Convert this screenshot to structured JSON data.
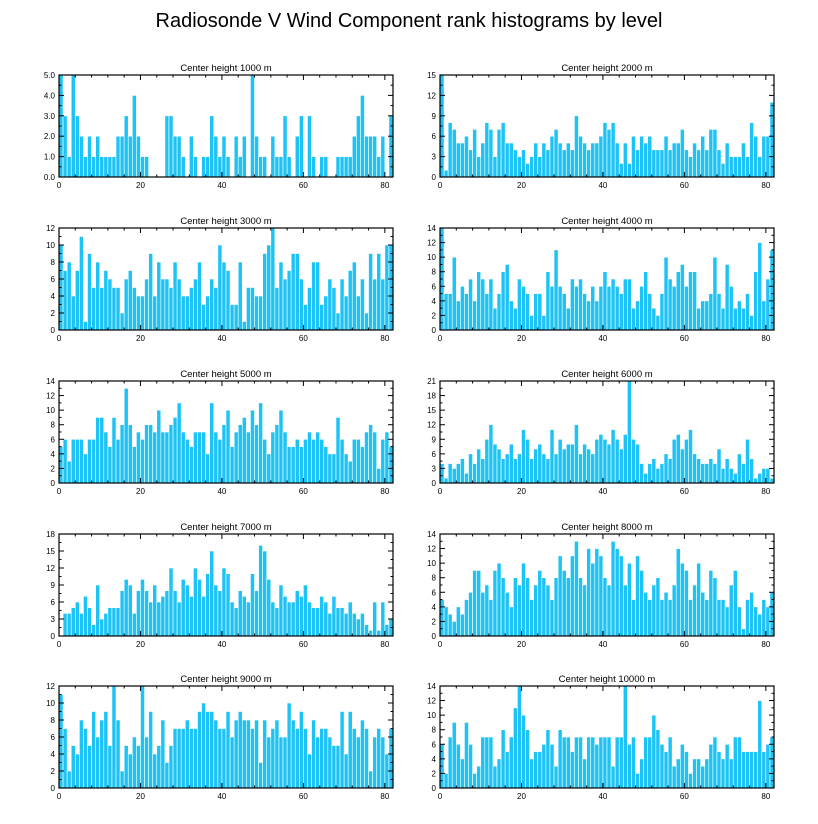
{
  "figure": {
    "title": "Radiosonde V Wind Component rank histograms by level",
    "bar_color": "#1ec3f5"
  },
  "chart_data": [
    {
      "type": "bar",
      "title": "Center height 1000 m",
      "xlim": [
        0,
        82
      ],
      "ylim": [
        0,
        5
      ],
      "xticks": [
        0,
        20,
        40,
        60,
        80
      ],
      "xtick_labels": [
        "0",
        "20",
        "40",
        "60",
        "80"
      ],
      "yticks": [
        0,
        1,
        2,
        3,
        4,
        5
      ],
      "ytick_labels": [
        "0.0",
        "1.0",
        "2.0",
        "3.0",
        "4.0",
        "5.0"
      ],
      "values": [
        5,
        3,
        1,
        5,
        3,
        2,
        1,
        2,
        1,
        2,
        1,
        1,
        1,
        1,
        2,
        2,
        3,
        2,
        4,
        2,
        1,
        1,
        0,
        0,
        0,
        0,
        3,
        3,
        2,
        2,
        1,
        0,
        2,
        1,
        0,
        1,
        1,
        3,
        2,
        1,
        2,
        1,
        0,
        2,
        1,
        2,
        0,
        5,
        2,
        1,
        1,
        0,
        2,
        1,
        1,
        3,
        1,
        0,
        2,
        3,
        0,
        3,
        1,
        0,
        1,
        1,
        0,
        0,
        1,
        1,
        1,
        1,
        2,
        3,
        4,
        2,
        2,
        2,
        1,
        2,
        0,
        3
      ]
    },
    {
      "type": "bar",
      "title": "Center height 2000 m",
      "xlim": [
        0,
        82
      ],
      "ylim": [
        0,
        15
      ],
      "xticks": [
        0,
        20,
        40,
        60,
        80
      ],
      "xtick_labels": [
        "0",
        "20",
        "40",
        "60",
        "80"
      ],
      "yticks": [
        0,
        3,
        6,
        9,
        12,
        15
      ],
      "ytick_labels": [
        "0",
        "3",
        "6",
        "9",
        "12",
        "15"
      ],
      "values": [
        15,
        1,
        8,
        7,
        5,
        5,
        6,
        4,
        7,
        3,
        5,
        8,
        7,
        3,
        7,
        8,
        5,
        5,
        4,
        3,
        4,
        2,
        3,
        5,
        3,
        5,
        4,
        6,
        7,
        5,
        4,
        5,
        4,
        9,
        6,
        5,
        4,
        5,
        5,
        6,
        8,
        7,
        8,
        5,
        2,
        5,
        2,
        6,
        4,
        6,
        5,
        6,
        4,
        4,
        4,
        6,
        4,
        5,
        5,
        7,
        4,
        3,
        5,
        4,
        6,
        4,
        7,
        7,
        4,
        2,
        5,
        3,
        3,
        3,
        5,
        3,
        8,
        6,
        3,
        6,
        6,
        11
      ]
    },
    {
      "type": "bar",
      "title": "Center height 3000 m",
      "xlim": [
        0,
        82
      ],
      "ylim": [
        0,
        12
      ],
      "xticks": [
        0,
        20,
        40,
        60,
        80
      ],
      "xtick_labels": [
        "0",
        "20",
        "40",
        "60",
        "80"
      ],
      "yticks": [
        0,
        2,
        4,
        6,
        8,
        10,
        12
      ],
      "ytick_labels": [
        "0",
        "2",
        "4",
        "6",
        "8",
        "10",
        "12"
      ],
      "values": [
        10,
        7,
        8,
        4,
        7,
        11,
        1,
        9,
        5,
        8,
        5,
        7,
        6,
        5,
        5,
        2,
        6,
        7,
        5,
        4,
        4,
        6,
        9,
        4,
        8,
        6,
        6,
        5,
        8,
        6,
        4,
        4,
        5,
        6,
        8,
        3,
        4,
        6,
        5,
        10,
        8,
        7,
        3,
        3,
        8,
        1,
        5,
        5,
        4,
        4,
        9,
        10,
        12,
        5,
        8,
        6,
        7,
        9,
        9,
        6,
        3,
        5,
        8,
        8,
        3,
        4,
        6,
        5,
        2,
        6,
        4,
        7,
        8,
        4,
        6,
        2,
        9,
        6,
        9,
        6,
        10,
        10
      ]
    },
    {
      "type": "bar",
      "title": "Center height 4000 m",
      "xlim": [
        0,
        82
      ],
      "ylim": [
        0,
        14
      ],
      "xticks": [
        0,
        20,
        40,
        60,
        80
      ],
      "xtick_labels": [
        "0",
        "20",
        "40",
        "60",
        "80"
      ],
      "yticks": [
        0,
        2,
        4,
        6,
        8,
        10,
        12,
        14
      ],
      "ytick_labels": [
        "0",
        "2",
        "4",
        "6",
        "8",
        "10",
        "12",
        "14"
      ],
      "values": [
        14,
        5,
        5,
        10,
        4,
        6,
        5,
        7,
        4,
        8,
        7,
        5,
        7,
        3,
        5,
        8,
        9,
        4,
        3,
        7,
        6,
        5,
        2,
        5,
        5,
        2,
        8,
        6,
        11,
        6,
        5,
        3,
        7,
        6,
        7,
        5,
        4,
        6,
        4,
        6,
        8,
        6,
        7,
        6,
        5,
        7,
        7,
        3,
        4,
        6,
        8,
        5,
        3,
        2,
        5,
        10,
        7,
        6,
        8,
        9,
        6,
        8,
        8,
        3,
        4,
        4,
        5,
        10,
        5,
        3,
        9,
        6,
        3,
        4,
        3,
        5,
        2,
        8,
        12,
        4,
        7,
        11
      ]
    },
    {
      "type": "bar",
      "title": "Center height 5000 m",
      "xlim": [
        0,
        82
      ],
      "ylim": [
        0,
        14
      ],
      "xticks": [
        0,
        20,
        40,
        60,
        80
      ],
      "xtick_labels": [
        "0",
        "20",
        "40",
        "60",
        "80"
      ],
      "yticks": [
        0,
        2,
        4,
        6,
        8,
        10,
        12,
        14
      ],
      "ytick_labels": [
        "0",
        "2",
        "4",
        "6",
        "8",
        "10",
        "12",
        "14"
      ],
      "values": [
        5,
        6,
        3,
        6,
        6,
        6,
        4,
        6,
        6,
        9,
        9,
        7,
        5,
        9,
        6,
        8,
        13,
        8,
        5,
        7,
        6,
        8,
        8,
        7,
        10,
        7,
        7,
        8,
        9,
        11,
        7,
        6,
        5,
        7,
        7,
        7,
        4,
        11,
        7,
        6,
        8,
        10,
        5,
        7,
        8,
        9,
        7,
        10,
        8,
        11,
        6,
        4,
        7,
        8,
        10,
        7,
        5,
        5,
        6,
        5,
        6,
        7,
        6,
        7,
        6,
        5,
        4,
        4,
        9,
        6,
        4,
        3,
        6,
        6,
        5,
        7,
        8,
        7,
        2,
        6,
        7,
        5
      ]
    },
    {
      "type": "bar",
      "title": "Center height 6000 m",
      "xlim": [
        0,
        82
      ],
      "ylim": [
        0,
        21
      ],
      "xticks": [
        0,
        20,
        40,
        60,
        80
      ],
      "xtick_labels": [
        "0",
        "20",
        "40",
        "60",
        "80"
      ],
      "yticks": [
        0,
        3,
        6,
        9,
        12,
        15,
        18,
        21
      ],
      "ytick_labels": [
        "0",
        "3",
        "6",
        "9",
        "12",
        "15",
        "18",
        "21"
      ],
      "values": [
        4,
        1,
        4,
        3,
        4,
        5,
        2,
        6,
        4,
        7,
        5,
        9,
        12,
        8,
        7,
        5,
        6,
        8,
        5,
        6,
        11,
        9,
        5,
        7,
        8,
        6,
        5,
        11,
        6,
        9,
        7,
        8,
        8,
        12,
        6,
        8,
        7,
        6,
        9,
        10,
        9,
        8,
        11,
        9,
        7,
        10,
        21,
        9,
        8,
        4,
        2,
        4,
        5,
        3,
        4,
        6,
        5,
        9,
        10,
        7,
        9,
        11,
        6,
        5,
        4,
        4,
        5,
        4,
        7,
        3,
        5,
        3,
        2,
        6,
        4,
        9,
        5,
        1,
        2,
        3,
        3,
        1
      ]
    },
    {
      "type": "bar",
      "title": "Center height 7000 m",
      "xlim": [
        0,
        82
      ],
      "ylim": [
        0,
        18
      ],
      "xticks": [
        0,
        20,
        40,
        60,
        80
      ],
      "xtick_labels": [
        "0",
        "20",
        "40",
        "60",
        "80"
      ],
      "yticks": [
        0,
        3,
        6,
        9,
        12,
        15,
        18
      ],
      "ytick_labels": [
        "0",
        "3",
        "6",
        "9",
        "12",
        "15",
        "18"
      ],
      "values": [
        0,
        4,
        4,
        5,
        6,
        4,
        7,
        5,
        2,
        9,
        3,
        4,
        5,
        5,
        5,
        8,
        10,
        9,
        4,
        8,
        10,
        8,
        6,
        9,
        6,
        7,
        8,
        12,
        8,
        6,
        10,
        9,
        7,
        12,
        10,
        7,
        11,
        15,
        9,
        8,
        12,
        11,
        6,
        5,
        8,
        7,
        6,
        11,
        8,
        16,
        15,
        10,
        6,
        5,
        9,
        7,
        6,
        6,
        8,
        7,
        9,
        6,
        5,
        5,
        7,
        6,
        4,
        7,
        5,
        5,
        4,
        6,
        4,
        3,
        4,
        2,
        1,
        6,
        1,
        6,
        2,
        3
      ]
    },
    {
      "type": "bar",
      "title": "Center height 8000 m",
      "xlim": [
        0,
        82
      ],
      "ylim": [
        0,
        14
      ],
      "xticks": [
        0,
        20,
        40,
        60,
        80
      ],
      "xtick_labels": [
        "0",
        "20",
        "40",
        "60",
        "80"
      ],
      "yticks": [
        0,
        2,
        4,
        6,
        8,
        10,
        12,
        14
      ],
      "ytick_labels": [
        "0",
        "2",
        "4",
        "6",
        "8",
        "10",
        "12",
        "14"
      ],
      "values": [
        5,
        4,
        3,
        2,
        4,
        3,
        5,
        6,
        9,
        9,
        6,
        7,
        5,
        9,
        10,
        8,
        6,
        4,
        8,
        7,
        10,
        8,
        5,
        7,
        9,
        8,
        7,
        5,
        8,
        11,
        9,
        8,
        11,
        13,
        8,
        7,
        12,
        10,
        12,
        11,
        8,
        7,
        13,
        12,
        11,
        7,
        10,
        5,
        11,
        9,
        6,
        5,
        7,
        8,
        5,
        6,
        5,
        7,
        12,
        10,
        9,
        5,
        7,
        10,
        6,
        5,
        9,
        8,
        5,
        5,
        4,
        7,
        9,
        4,
        1,
        5,
        6,
        4,
        3,
        5,
        4,
        6
      ]
    },
    {
      "type": "bar",
      "title": "Center height 9000 m",
      "xlim": [
        0,
        82
      ],
      "ylim": [
        0,
        12
      ],
      "xticks": [
        0,
        20,
        40,
        60,
        80
      ],
      "xtick_labels": [
        "0",
        "20",
        "40",
        "60",
        "80"
      ],
      "yticks": [
        0,
        2,
        4,
        6,
        8,
        10,
        12
      ],
      "ytick_labels": [
        "0",
        "2",
        "4",
        "6",
        "8",
        "10",
        "12"
      ],
      "values": [
        11,
        7,
        2,
        5,
        4,
        8,
        7,
        5,
        9,
        6,
        8,
        9,
        5,
        12,
        8,
        2,
        5,
        4,
        6,
        5,
        12,
        6,
        9,
        4,
        5,
        8,
        3,
        5,
        7,
        7,
        7,
        8,
        7,
        7,
        9,
        10,
        9,
        9,
        8,
        7,
        7,
        9,
        6,
        8,
        9,
        8,
        8,
        7,
        8,
        3,
        8,
        6,
        7,
        8,
        6,
        6,
        10,
        8,
        7,
        9,
        7,
        4,
        8,
        6,
        7,
        7,
        6,
        5,
        5,
        9,
        4,
        9,
        7,
        6,
        8,
        7,
        2,
        6,
        7,
        6,
        4,
        7
      ]
    },
    {
      "type": "bar",
      "title": "Center height 10000 m",
      "xlim": [
        0,
        82
      ],
      "ylim": [
        0,
        14
      ],
      "xticks": [
        0,
        20,
        40,
        60,
        80
      ],
      "xtick_labels": [
        "0",
        "20",
        "40",
        "60",
        "80"
      ],
      "yticks": [
        0,
        2,
        4,
        6,
        8,
        10,
        12,
        14
      ],
      "ytick_labels": [
        "0",
        "2",
        "4",
        "6",
        "8",
        "10",
        "12",
        "14"
      ],
      "values": [
        6,
        2,
        7,
        9,
        6,
        4,
        9,
        6,
        2,
        3,
        7,
        7,
        7,
        3,
        4,
        8,
        5,
        7,
        11,
        14,
        10,
        8,
        4,
        5,
        5,
        6,
        8,
        6,
        3,
        8,
        7,
        7,
        5,
        7,
        7,
        4,
        7,
        7,
        6,
        7,
        7,
        7,
        3,
        7,
        7,
        14,
        6,
        7,
        2,
        4,
        7,
        7,
        10,
        8,
        6,
        5,
        7,
        3,
        4,
        6,
        5,
        2,
        4,
        4,
        3,
        4,
        6,
        7,
        5,
        4,
        6,
        4,
        7,
        7,
        5,
        5,
        5,
        5,
        12,
        5,
        6,
        7
      ]
    }
  ]
}
